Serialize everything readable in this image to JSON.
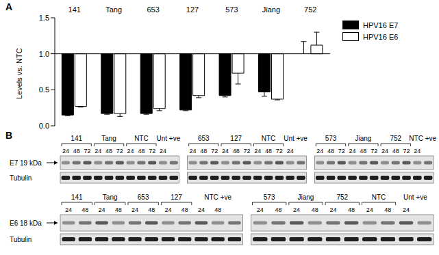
{
  "panel_labels": [
    "A",
    "B"
  ],
  "chart_data": {
    "type": "bar",
    "categories": [
      "141",
      "Tang",
      "653",
      "127",
      "573",
      "Jiang",
      "752"
    ],
    "baseline": 1,
    "series": [
      {
        "name": "HPV16 E7",
        "color": "#000000",
        "values": [
          0.15,
          0.17,
          0.17,
          0.22,
          0.42,
          0.47,
          1.0
        ],
        "errors": [
          0.01,
          0.01,
          0.01,
          0.01,
          0.02,
          0.06,
          0.17
        ]
      },
      {
        "name": "HPV16 E6",
        "color": "#ffffff",
        "values": [
          0.27,
          0.17,
          0.24,
          0.42,
          0.73,
          0.37,
          1.12
        ],
        "errors": [
          0.01,
          0.04,
          0.03,
          0.03,
          0.15,
          0.01,
          0.18
        ]
      }
    ],
    "y_label": "Levels vs. NTC",
    "ylim": [
      0,
      1.5
    ],
    "yticks": [
      {
        "value": 0,
        "label": "0.0"
      },
      {
        "value": 0.5,
        "label": "0.5"
      },
      {
        "value": 1,
        "label": "1.0"
      },
      {
        "value": 1.5,
        "label": "1.5"
      }
    ],
    "grid": false,
    "legend": "right"
  },
  "panel_b": {
    "rows": [
      {
        "labels": [
          "E7 19 kDa",
          "Tubulin"
        ],
        "blots": [
          {
            "groups": [
              {
                "label": "141",
                "times": [
                  24,
                  48,
                  72
                ]
              },
              {
                "label": "Tang",
                "times": [
                  24,
                  48,
                  72
                ]
              },
              {
                "label": "NTC",
                "times": [
                  24,
                  48,
                  72
                ]
              },
              {
                "label": "Unt +ve",
                "times": [
                  24,
                  null
                ]
              }
            ]
          },
          {
            "groups": [
              {
                "label": "653",
                "times": [
                  24,
                  48,
                  72
                ]
              },
              {
                "label": "127",
                "times": [
                  24,
                  48,
                  72
                ]
              },
              {
                "label": "NTC",
                "times": [
                  24,
                  48,
                  72
                ]
              },
              {
                "label": "Unt +ve",
                "times": [
                  24,
                  null
                ]
              }
            ]
          },
          {
            "groups": [
              {
                "label": "573",
                "times": [
                  24,
                  48,
                  72
                ]
              },
              {
                "label": "Jiang",
                "times": [
                  24,
                  48,
                  72
                ]
              },
              {
                "label": "752",
                "times": [
                  24,
                  48,
                  72
                ]
              },
              {
                "label": "NTC +ve",
                "times": [
                  24,
                  null
                ]
              }
            ]
          }
        ]
      },
      {
        "labels": [
          "E6 18 kDa",
          "Tubulin"
        ],
        "blots": [
          {
            "groups": [
              {
                "label": "141",
                "times": [
                  24,
                  48
                ]
              },
              {
                "label": "Tang",
                "times": [
                  24,
                  48
                ]
              },
              {
                "label": "653",
                "times": [
                  24,
                  48
                ]
              },
              {
                "label": "127",
                "times": [
                  24,
                  48
                ]
              },
              {
                "label": "NTC +ve",
                "times": [
                  24,
                  48,
                  null
                ]
              }
            ]
          },
          {
            "groups": [
              {
                "label": "573",
                "times": [
                  24,
                  48
                ]
              },
              {
                "label": "Jiang",
                "times": [
                  24,
                  48
                ]
              },
              {
                "label": "752",
                "times": [
                  24,
                  48
                ]
              },
              {
                "label": "NTC",
                "times": [
                  24,
                  48
                ]
              },
              {
                "label": "Unt +ve",
                "times": [
                  24,
                  null
                ]
              }
            ]
          }
        ]
      }
    ]
  }
}
